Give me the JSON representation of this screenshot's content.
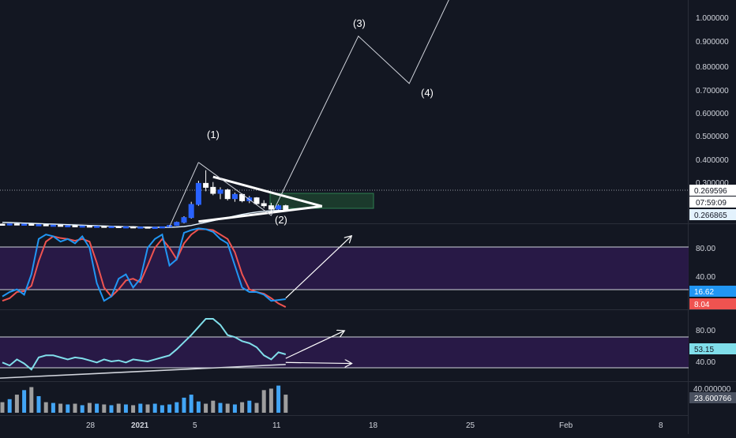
{
  "chart_data": {
    "type": "line",
    "x_axis": {
      "tick_labels": [
        "28",
        "2021",
        "5",
        "11",
        "18",
        "25",
        "Feb",
        "8"
      ]
    },
    "main": {
      "price_axis": [
        "1.000000",
        "0.900000",
        "0.800000",
        "0.700000",
        "0.600000",
        "0.500000",
        "0.400000",
        "0.300000"
      ],
      "ylim": [
        0.2,
        1.0
      ],
      "tags": {
        "last_price": "0.269596",
        "countdown": "07:59:09",
        "ma_value": "0.266865"
      },
      "annotations": [
        "(1)",
        "(2)",
        "(3)",
        "(4)"
      ],
      "candles": [
        {
          "o": 0.215,
          "h": 0.218,
          "l": 0.211,
          "c": 0.214
        },
        {
          "o": 0.214,
          "h": 0.217,
          "l": 0.21,
          "c": 0.216
        },
        {
          "o": 0.216,
          "h": 0.218,
          "l": 0.211,
          "c": 0.212
        },
        {
          "o": 0.212,
          "h": 0.216,
          "l": 0.209,
          "c": 0.215
        },
        {
          "o": 0.215,
          "h": 0.217,
          "l": 0.21,
          "c": 0.211
        },
        {
          "o": 0.211,
          "h": 0.214,
          "l": 0.208,
          "c": 0.213
        },
        {
          "o": 0.213,
          "h": 0.215,
          "l": 0.208,
          "c": 0.209
        },
        {
          "o": 0.209,
          "h": 0.212,
          "l": 0.206,
          "c": 0.211
        },
        {
          "o": 0.211,
          "h": 0.213,
          "l": 0.206,
          "c": 0.207
        },
        {
          "o": 0.207,
          "h": 0.21,
          "l": 0.205,
          "c": 0.209
        },
        {
          "o": 0.209,
          "h": 0.211,
          "l": 0.205,
          "c": 0.206
        },
        {
          "o": 0.206,
          "h": 0.209,
          "l": 0.204,
          "c": 0.208
        },
        {
          "o": 0.208,
          "h": 0.21,
          "l": 0.204,
          "c": 0.205
        },
        {
          "o": 0.205,
          "h": 0.208,
          "l": 0.203,
          "c": 0.207
        },
        {
          "o": 0.207,
          "h": 0.209,
          "l": 0.203,
          "c": 0.204
        },
        {
          "o": 0.204,
          "h": 0.207,
          "l": 0.202,
          "c": 0.206
        },
        {
          "o": 0.206,
          "h": 0.208,
          "l": 0.202,
          "c": 0.203
        },
        {
          "o": 0.203,
          "h": 0.206,
          "l": 0.201,
          "c": 0.205
        },
        {
          "o": 0.205,
          "h": 0.207,
          "l": 0.201,
          "c": 0.202
        },
        {
          "o": 0.202,
          "h": 0.205,
          "l": 0.2,
          "c": 0.204
        },
        {
          "o": 0.204,
          "h": 0.206,
          "l": 0.2,
          "c": 0.201
        },
        {
          "o": 0.201,
          "h": 0.204,
          "l": 0.199,
          "c": 0.203
        },
        {
          "o": 0.203,
          "h": 0.206,
          "l": 0.2,
          "c": 0.205
        },
        {
          "o": 0.205,
          "h": 0.212,
          "l": 0.203,
          "c": 0.21
        },
        {
          "o": 0.21,
          "h": 0.225,
          "l": 0.208,
          "c": 0.222
        },
        {
          "o": 0.222,
          "h": 0.245,
          "l": 0.218,
          "c": 0.24
        },
        {
          "o": 0.24,
          "h": 0.3,
          "l": 0.236,
          "c": 0.29
        },
        {
          "o": 0.29,
          "h": 0.38,
          "l": 0.285,
          "c": 0.37
        },
        {
          "o": 0.37,
          "h": 0.42,
          "l": 0.34,
          "c": 0.355
        },
        {
          "o": 0.355,
          "h": 0.375,
          "l": 0.325,
          "c": 0.332
        },
        {
          "o": 0.332,
          "h": 0.355,
          "l": 0.31,
          "c": 0.345
        },
        {
          "o": 0.345,
          "h": 0.35,
          "l": 0.305,
          "c": 0.312
        },
        {
          "o": 0.312,
          "h": 0.335,
          "l": 0.3,
          "c": 0.328
        },
        {
          "o": 0.328,
          "h": 0.332,
          "l": 0.298,
          "c": 0.304
        },
        {
          "o": 0.304,
          "h": 0.322,
          "l": 0.295,
          "c": 0.315
        },
        {
          "o": 0.315,
          "h": 0.318,
          "l": 0.288,
          "c": 0.293
        },
        {
          "o": 0.293,
          "h": 0.306,
          "l": 0.276,
          "c": 0.285
        },
        {
          "o": 0.285,
          "h": 0.296,
          "l": 0.262,
          "c": 0.272
        },
        {
          "o": 0.272,
          "h": 0.29,
          "l": 0.268,
          "c": 0.285
        },
        {
          "o": 0.285,
          "h": 0.289,
          "l": 0.266,
          "c": 0.27
        }
      ],
      "ma_line": [
        0.222,
        0.221,
        0.22,
        0.219,
        0.218,
        0.217,
        0.216,
        0.215,
        0.214,
        0.213,
        0.212,
        0.211,
        0.21,
        0.209,
        0.208,
        0.207,
        0.206,
        0.205,
        0.205,
        0.204,
        0.203,
        0.203,
        0.203,
        0.203,
        0.204,
        0.206,
        0.21,
        0.216,
        0.222,
        0.228,
        0.234,
        0.24,
        0.246,
        0.252,
        0.257,
        0.261,
        0.264,
        0.266,
        0.267,
        0.267
      ],
      "forecast_path": [
        {
          "bar": 27,
          "price": 0.45
        },
        {
          "bar": 37,
          "price": 0.248
        },
        {
          "bar": 49,
          "price": 0.93
        },
        {
          "bar": 56,
          "price": 0.75
        },
        {
          "bar": 62,
          "price": 1.1
        }
      ]
    },
    "stoch": {
      "axis": [
        "80.00",
        "40.00"
      ],
      "ylim": [
        0,
        100
      ],
      "band": [
        30,
        80
      ],
      "tags": {
        "k": "16.62",
        "d": "8.04"
      },
      "k": [
        20,
        25,
        28,
        22,
        45,
        85,
        90,
        88,
        82,
        85,
        80,
        88,
        75,
        35,
        15,
        20,
        40,
        45,
        30,
        40,
        75,
        85,
        90,
        55,
        62,
        92,
        95,
        97,
        96,
        93,
        85,
        80,
        55,
        30,
        25,
        25,
        22,
        15,
        16,
        17
      ],
      "d": [
        15,
        18,
        25,
        26,
        32,
        60,
        82,
        88,
        86,
        85,
        83,
        85,
        82,
        58,
        30,
        20,
        28,
        38,
        40,
        36,
        55,
        75,
        85,
        75,
        62,
        80,
        90,
        96,
        96,
        95,
        90,
        85,
        70,
        45,
        28,
        25,
        23,
        18,
        12,
        8
      ],
      "arrow": [
        {
          "bar": 39,
          "v": 18
        },
        {
          "bar": 48,
          "v": 88
        }
      ]
    },
    "rsi": {
      "axis": [
        "80.00",
        "40.00"
      ],
      "ylim": [
        25,
        95
      ],
      "band": [
        34,
        72
      ],
      "tag": "53.15",
      "values": [
        45,
        42,
        48,
        44,
        38,
        50,
        52,
        52,
        50,
        48,
        50,
        49,
        47,
        45,
        48,
        46,
        47,
        45,
        48,
        47,
        46,
        48,
        50,
        52,
        58,
        65,
        72,
        80,
        88,
        88,
        82,
        72,
        70,
        66,
        64,
        60,
        52,
        48,
        55,
        53
      ],
      "trend": [
        {
          "bar": -2,
          "v": 29
        },
        {
          "bar": 39,
          "v": 43
        }
      ],
      "arrows": [
        [
          {
            "bar": 39,
            "v": 45
          },
          {
            "bar": 48,
            "v": 44
          }
        ],
        [
          {
            "bar": 39,
            "v": 49
          },
          {
            "bar": 47,
            "v": 76
          }
        ]
      ]
    },
    "volume": {
      "axis": [
        "40.000000"
      ],
      "tag": "23.600766",
      "ylim": [
        0,
        45
      ],
      "values": [
        14,
        18,
        24,
        30,
        34,
        22,
        14,
        13,
        12,
        11,
        12,
        10,
        13,
        12,
        11,
        10,
        12,
        11,
        10,
        12,
        11,
        12,
        10,
        11,
        14,
        20,
        24,
        15,
        12,
        16,
        13,
        12,
        11,
        14,
        16,
        13,
        30,
        32,
        36,
        24
      ]
    }
  }
}
